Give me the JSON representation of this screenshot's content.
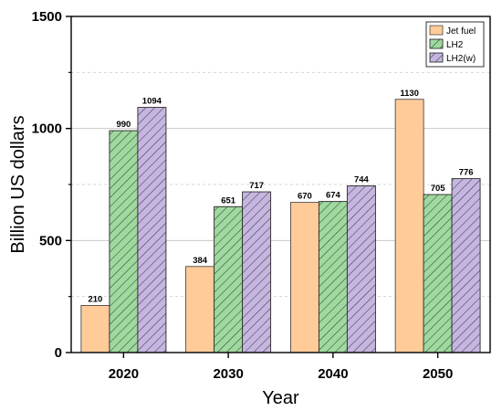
{
  "chart_data": {
    "type": "bar",
    "title": "",
    "xlabel": "Year",
    "ylabel": "Billion US dollars",
    "categories": [
      "2020",
      "2030",
      "2040",
      "2050"
    ],
    "series": [
      {
        "name": "Jet fuel",
        "values": [
          210,
          384,
          670,
          1130
        ],
        "color": "#ffcc99",
        "pattern": "none"
      },
      {
        "name": "LH2",
        "values": [
          990,
          651,
          674,
          705
        ],
        "color": "#9ed99e",
        "pattern": "hatch"
      },
      {
        "name": "LH2(w)",
        "values": [
          1094,
          717,
          744,
          776
        ],
        "color": "#c5b5e0",
        "pattern": "hatch"
      }
    ],
    "ylim": [
      0,
      1500
    ],
    "yticks": [
      "0",
      "500",
      "1000",
      "1500"
    ],
    "grid": true,
    "legend_position": "top-right"
  }
}
